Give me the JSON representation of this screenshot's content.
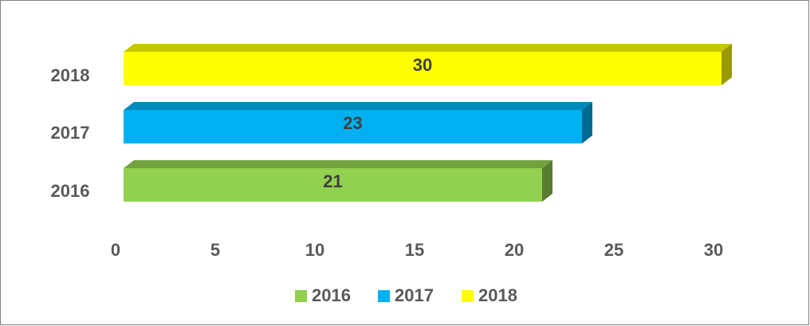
{
  "chart_data": {
    "type": "bar",
    "orientation": "horizontal",
    "categories": [
      "2016",
      "2017",
      "2018"
    ],
    "series": [
      {
        "name": "2016",
        "color": "#92d050",
        "values": [
          21,
          null,
          null
        ]
      },
      {
        "name": "2017",
        "color": "#00b0f0",
        "values": [
          null,
          23,
          null
        ]
      },
      {
        "name": "2018",
        "color": "#ffff00",
        "values": [
          null,
          null,
          30
        ]
      }
    ],
    "xlim": [
      0,
      30
    ],
    "xticks": [
      0,
      5,
      10,
      15,
      20,
      25,
      30
    ],
    "legend": "bottom",
    "data_labels": true
  }
}
